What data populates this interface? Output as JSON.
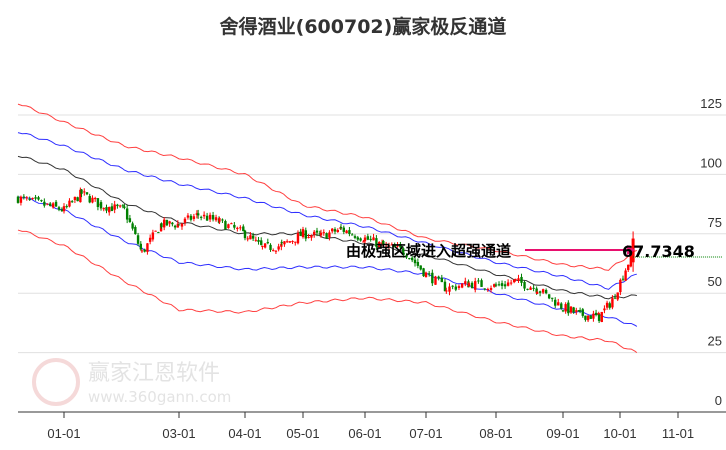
{
  "chart_data": {
    "type": "candlestick-channel",
    "title": "舍得酒业(600702)赢家极反通道",
    "ylim": [
      0,
      140
    ],
    "yticks": [
      0,
      25,
      50,
      75,
      100,
      125
    ],
    "xticks": [
      "01-01",
      "03-01",
      "04-01",
      "05-01",
      "06-01",
      "07-01",
      "08-01",
      "09-01",
      "10-01",
      "11-01"
    ],
    "grid": true,
    "annotation": {
      "text": "由极强区域进入超强通道",
      "value_label": "67.7348",
      "value": 67.7348
    },
    "colors": {
      "up": "#ff0000",
      "down": "#008000",
      "outer_band": "#ff4040",
      "inner_band": "#3030ff",
      "middle": "#333333",
      "arrow": "#e8106e",
      "grid": "#e0e0e0"
    },
    "dates": [
      "12-10",
      "01-01",
      "01-10",
      "01-20",
      "02-01",
      "02-10",
      "02-20",
      "03-01",
      "03-10",
      "03-20",
      "04-01",
      "04-10",
      "04-20",
      "05-01",
      "05-10",
      "05-20",
      "06-01",
      "06-10",
      "06-20",
      "07-01",
      "07-10",
      "07-20",
      "08-01",
      "08-10",
      "08-20",
      "09-01",
      "09-10",
      "09-20",
      "09-27",
      "10-08",
      "10-10"
    ],
    "close": [
      90,
      85,
      92,
      87,
      85,
      67,
      79,
      79,
      83,
      80,
      75,
      69,
      70,
      75,
      74,
      77,
      73,
      70,
      68,
      58,
      52,
      54,
      53,
      55,
      52,
      44,
      41,
      40,
      47,
      67.7,
      null
    ],
    "bands": {
      "dates": [
        "12-10",
        "01-01",
        "02-01",
        "03-01",
        "04-01",
        "05-01",
        "06-01",
        "07-01",
        "08-01",
        "09-01",
        "09-25",
        "10-10"
      ],
      "upper_outer": [
        130,
        122,
        112,
        107,
        100,
        87,
        82,
        73,
        68,
        62,
        60,
        68
      ],
      "upper_inner": [
        118,
        112,
        102,
        96,
        90,
        83,
        78,
        71,
        63,
        57,
        52,
        58
      ],
      "middle": [
        108,
        102,
        88,
        80,
        75,
        75,
        71,
        66,
        58,
        51,
        48,
        49
      ],
      "lower_inner": [
        91,
        85,
        72,
        63,
        60,
        61,
        61,
        58,
        50,
        43,
        40,
        36
      ],
      "lower_outer": [
        77,
        70,
        55,
        43,
        42,
        46,
        48,
        46,
        38,
        32,
        30,
        25
      ]
    }
  },
  "watermark": {
    "brand": "赢家江恩软件",
    "url": "www.360gann.com"
  }
}
